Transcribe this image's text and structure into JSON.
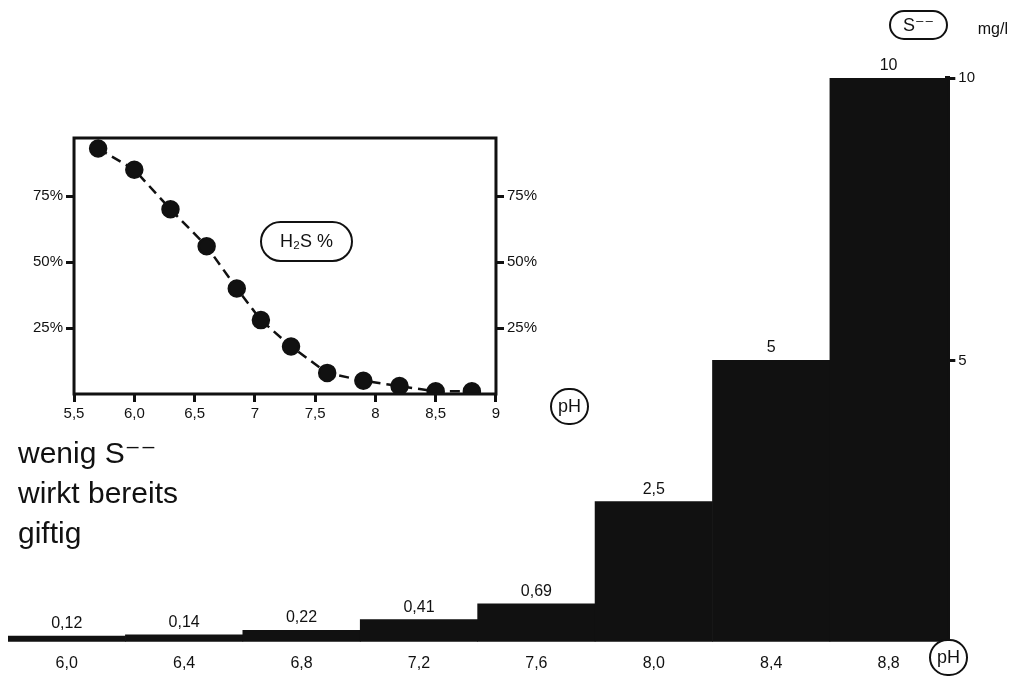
{
  "chart_data": [
    {
      "type": "bar",
      "categories": [
        "6,0",
        "6,4",
        "6,8",
        "7,2",
        "7,6",
        "8,0",
        "8,4",
        "8,8"
      ],
      "values": [
        0.12,
        0.14,
        0.22,
        0.41,
        0.69,
        2.5,
        5,
        10
      ],
      "color": "#111111",
      "value_labels": [
        "0,12",
        "0,14",
        "0,22",
        "0,41",
        "0,69",
        "2,5",
        "5",
        "10"
      ],
      "ylim": [
        0,
        10
      ],
      "yticks": [
        {
          "value": 0,
          "label": null
        },
        5,
        10
      ],
      "grid": false,
      "legend": false,
      "xlabel": "pH",
      "ylabel": "S⁻⁻",
      "annotations": [
        "mg/l",
        "wenig S⁻⁻ wirkt bereits giftig"
      ]
    },
    {
      "type": "line",
      "x": [
        5.7,
        6.0,
        6.3,
        6.6,
        6.85,
        7.05,
        7.3,
        7.6,
        7.9,
        8.2,
        8.5,
        8.8
      ],
      "values": [
        93,
        85,
        70,
        56,
        40,
        28,
        18,
        8,
        5,
        3,
        1,
        1
      ],
      "color": "#111111",
      "marker": "circle",
      "line_style": "dashed",
      "xlim": [
        5.5,
        9
      ],
      "xticks": [
        {
          "value": 5.5,
          "label": "5,5"
        },
        {
          "value": 6,
          "label": "6,0"
        },
        {
          "value": 6.5,
          "label": "6,5"
        },
        7,
        {
          "value": 7.5,
          "label": "7,5"
        },
        8,
        {
          "value": 8.5,
          "label": "8,5"
        },
        9
      ],
      "ylim": [
        0,
        97
      ],
      "yticks": [
        {
          "value": 25,
          "label": "25%"
        },
        {
          "value": 50,
          "label": "50%"
        },
        {
          "value": 75,
          "label": "75%"
        }
      ],
      "y2lim": [
        0,
        97
      ],
      "y2ticks": [
        {
          "value": 25,
          "label": "25%"
        },
        {
          "value": 50,
          "label": "50%"
        },
        {
          "value": 75,
          "label": "75%"
        }
      ],
      "grid": false,
      "legend": false,
      "xlabel": "pH",
      "annotations": [
        "H₂S %"
      ]
    }
  ]
}
